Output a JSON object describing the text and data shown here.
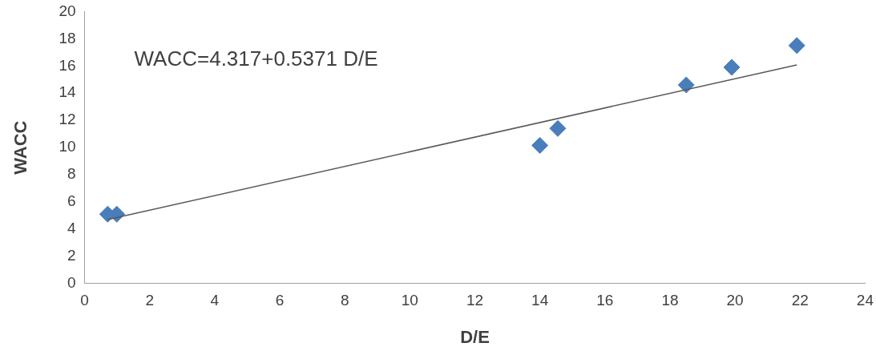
{
  "chart_data": {
    "type": "scatter",
    "xlabel": "D/E",
    "ylabel": "WACC",
    "grid": false,
    "legend": false,
    "xlim": [
      0,
      24
    ],
    "xticks": [
      0,
      2,
      4,
      6,
      8,
      10,
      12,
      14,
      16,
      18,
      20,
      22,
      24
    ],
    "ylim": [
      0,
      20
    ],
    "yticks": [
      0,
      2,
      4,
      6,
      8,
      10,
      12,
      14,
      16,
      18,
      20
    ],
    "annotations": [
      "WACC=4.317+0.5371 D/E"
    ],
    "series": [
      {
        "type": "scatter",
        "marker": "diamond",
        "color": "#4a7ebb",
        "x": [
          0.71,
          0.99,
          14.0,
          14.55,
          18.5,
          19.9,
          21.9
        ],
        "values": [
          5.1,
          5.1,
          10.16,
          11.4,
          14.6,
          15.9,
          17.5
        ]
      },
      {
        "type": "line",
        "marker": "none",
        "color": "#595959",
        "x": [
          0.71,
          21.9
        ],
        "values": [
          4.7,
          16.08
        ]
      }
    ]
  }
}
